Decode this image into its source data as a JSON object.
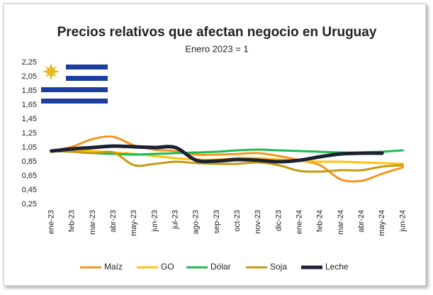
{
  "chart_data": {
    "type": "line",
    "title": "Precios relativos que afectan negocio en Uruguay",
    "subtitle": "Enero 2023 = 1",
    "categories": [
      "ene-23",
      "feb-23",
      "mar-23",
      "abr-23",
      "may-23",
      "jun-23",
      "jul-23",
      "ago-23",
      "sep-23",
      "oct-23",
      "nov-23",
      "dic-23",
      "ene-24",
      "feb-24",
      "mar-24",
      "abr-24",
      "may-24",
      "jun-24"
    ],
    "series": [
      {
        "name": "Maíz",
        "color": "#f7941d",
        "values": [
          1.0,
          1.06,
          1.17,
          1.2,
          1.08,
          1.02,
          1.0,
          0.95,
          0.95,
          0.96,
          0.97,
          0.93,
          0.87,
          0.8,
          0.6,
          0.58,
          0.68,
          0.77
        ]
      },
      {
        "name": "GO",
        "color": "#ffc20e",
        "values": [
          1.0,
          1.02,
          1.0,
          0.98,
          0.96,
          0.93,
          0.9,
          0.88,
          0.88,
          0.9,
          0.9,
          0.88,
          0.86,
          0.85,
          0.85,
          0.84,
          0.83,
          0.82
        ]
      },
      {
        "name": "Dólar",
        "color": "#1db954",
        "values": [
          1.0,
          0.99,
          0.97,
          0.96,
          0.95,
          0.96,
          0.97,
          0.98,
          0.99,
          1.01,
          1.02,
          1.01,
          1.0,
          0.99,
          0.98,
          0.98,
          0.99,
          1.01
        ]
      },
      {
        "name": "Soja",
        "color": "#c49a10",
        "values": [
          1.0,
          0.99,
          0.97,
          0.98,
          0.8,
          0.82,
          0.85,
          0.83,
          0.82,
          0.82,
          0.84,
          0.8,
          0.72,
          0.71,
          0.73,
          0.73,
          0.78,
          0.8
        ]
      },
      {
        "name": "Leche",
        "color": "#1c2033",
        "values": [
          1.0,
          1.03,
          1.05,
          1.07,
          1.06,
          1.05,
          1.05,
          0.87,
          0.86,
          0.88,
          0.87,
          0.85,
          0.87,
          0.92,
          0.96,
          0.97,
          0.97,
          null
        ]
      }
    ],
    "ylim": [
      0.25,
      2.25
    ],
    "yticks": [
      {
        "value": 0.25,
        "label": "0,25"
      },
      {
        "value": 0.45,
        "label": "0,45"
      },
      {
        "value": 0.65,
        "label": "0,65"
      },
      {
        "value": 0.85,
        "label": "0,85"
      },
      {
        "value": 1.05,
        "label": "1,05"
      },
      {
        "value": 1.25,
        "label": "1,25"
      },
      {
        "value": 1.45,
        "label": "1,45"
      },
      {
        "value": 1.65,
        "label": "1,65"
      },
      {
        "value": 1.85,
        "label": "1,85"
      },
      {
        "value": 2.05,
        "label": "2,05"
      },
      {
        "value": 2.25,
        "label": "2,25"
      }
    ],
    "grid": false,
    "legend": "bottom"
  }
}
